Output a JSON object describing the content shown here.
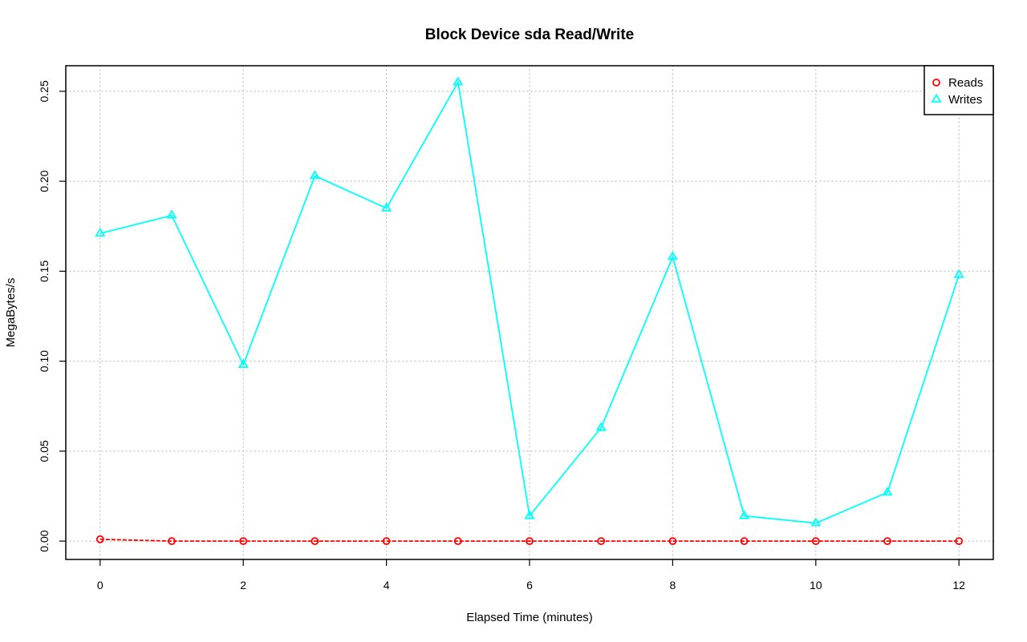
{
  "chart_data": {
    "type": "line",
    "title": "Block Device sda Read/Write",
    "xlabel": "Elapsed Time (minutes)",
    "ylabel": "MegaBytes/s",
    "xlim": [
      -0.48,
      12.48
    ],
    "ylim": [
      -0.0102,
      0.2642
    ],
    "x_ticks": [
      0,
      2,
      4,
      6,
      8,
      10,
      12
    ],
    "x_tick_labels": [
      "0",
      "2",
      "4",
      "6",
      "8",
      "10",
      "12"
    ],
    "y_ticks": [
      0,
      0.05,
      0.1,
      0.15,
      0.2,
      0.25
    ],
    "y_tick_labels": [
      "0.00",
      "0.05",
      "0.10",
      "0.15",
      "0.20",
      "0.25"
    ],
    "grid": true,
    "legend_position": "top-right",
    "x": [
      0,
      1,
      2,
      3,
      4,
      5,
      6,
      7,
      8,
      9,
      10,
      11,
      12
    ],
    "series": [
      {
        "name": "Reads",
        "color": "#ff0000",
        "marker": "circle",
        "line_style": "dashed",
        "values": [
          0.001,
          0,
          0,
          0,
          0,
          0,
          0,
          0,
          0,
          0,
          0,
          0,
          0
        ]
      },
      {
        "name": "Writes",
        "color": "#00ffff",
        "marker": "triangle",
        "line_style": "solid",
        "values": [
          0.171,
          0.181,
          0.098,
          0.203,
          0.185,
          0.255,
          0.014,
          0.063,
          0.158,
          0.014,
          0.01,
          0.027,
          0.148
        ]
      }
    ]
  }
}
